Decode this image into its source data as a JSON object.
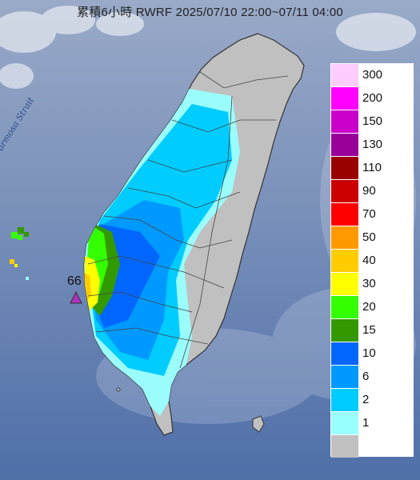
{
  "title": "累積6小時 RWRF 2025/07/10 22:00~07/11 04:00",
  "strait_label": "Formosa Strait",
  "marker": {
    "label": "66",
    "color": "#b030c0"
  },
  "colors": {
    "sea_top": "#9aaac8",
    "sea_bottom": "#4f6fa8",
    "land": "#c0c0c0",
    "cloud": "#ffffff"
  },
  "legend": [
    {
      "label": "300",
      "color": "#ffccff"
    },
    {
      "label": "200",
      "color": "#ff00ff"
    },
    {
      "label": "150",
      "color": "#cc00cc"
    },
    {
      "label": "130",
      "color": "#990099"
    },
    {
      "label": "110",
      "color": "#990000"
    },
    {
      "label": "90",
      "color": "#cc0000"
    },
    {
      "label": "70",
      "color": "#ff0000"
    },
    {
      "label": "50",
      "color": "#ff9900"
    },
    {
      "label": "40",
      "color": "#ffcc00"
    },
    {
      "label": "30",
      "color": "#ffff00"
    },
    {
      "label": "20",
      "color": "#33ff00"
    },
    {
      "label": "15",
      "color": "#339900"
    },
    {
      "label": "10",
      "color": "#0066ff"
    },
    {
      "label": "6",
      "color": "#0099ff"
    },
    {
      "label": "2",
      "color": "#00ccff"
    },
    {
      "label": "1",
      "color": "#99ffff"
    },
    {
      "label": "",
      "color": "#c0c0c0"
    }
  ]
}
